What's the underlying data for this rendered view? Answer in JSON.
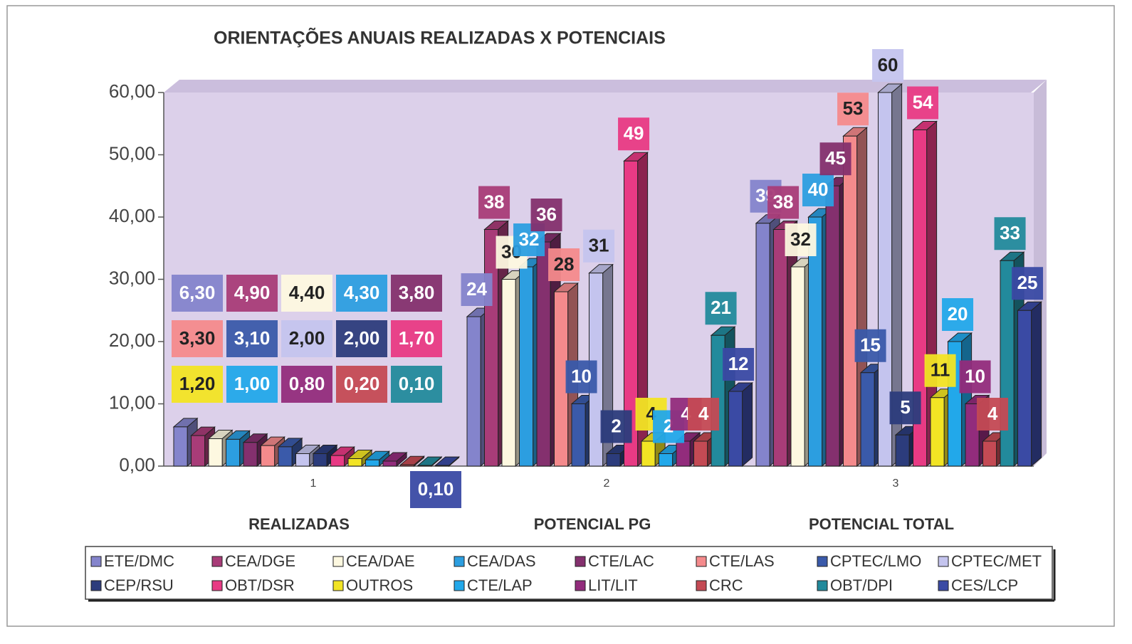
{
  "chart_data": {
    "type": "bar3d",
    "title": "ORIENTAÇÕES ANUAIS REALIZADAS X POTENCIAIS",
    "categories": [
      "1",
      "2",
      "3"
    ],
    "annotations": [
      "REALIZADAS",
      "POTENCIAL PG",
      "POTENCIAL TOTAL"
    ],
    "ylim": [
      0,
      60
    ],
    "yticks": [
      {
        "value": 0,
        "label": "0,00"
      },
      {
        "value": 10,
        "label": "10,00"
      },
      {
        "value": 20,
        "label": "20,00"
      },
      {
        "value": 30,
        "label": "30,00"
      },
      {
        "value": 40,
        "label": "40,00"
      },
      {
        "value": 50,
        "label": "50,00"
      },
      {
        "value": 60,
        "label": "60,00"
      }
    ],
    "series": [
      {
        "name": "ETE/DMC",
        "color": "#8484cc",
        "values": [
          6.3,
          24,
          39
        ],
        "value_labels": [
          "6,30",
          "24",
          "39"
        ]
      },
      {
        "name": "CEA/DGE",
        "color": "#a83c78",
        "values": [
          4.9,
          38,
          38
        ],
        "value_labels": [
          "4,90",
          "38",
          "38"
        ]
      },
      {
        "name": "CEA/DAE",
        "color": "#fdf8e0",
        "values": [
          4.4,
          30,
          32
        ],
        "value_labels": [
          "4,40",
          "30",
          "32"
        ]
      },
      {
        "name": "CEA/DAS",
        "color": "#2c9ee0",
        "values": [
          4.3,
          32,
          40
        ],
        "value_labels": [
          "4,30",
          "32",
          "40"
        ]
      },
      {
        "name": "CTE/LAC",
        "color": "#84306e",
        "values": [
          3.8,
          36,
          45
        ],
        "value_labels": [
          "3,80",
          "36",
          "45"
        ]
      },
      {
        "name": "CTE/LAS",
        "color": "#f48a8c",
        "values": [
          3.3,
          28,
          53
        ],
        "value_labels": [
          "3,30",
          "28",
          "53"
        ]
      },
      {
        "name": "CPTEC/LMO",
        "color": "#3a5aaa",
        "values": [
          3.1,
          10,
          15
        ],
        "value_labels": [
          "3,10",
          "10",
          "15"
        ]
      },
      {
        "name": "CPTEC/MET",
        "color": "#c4c4ee",
        "values": [
          2.0,
          31,
          60
        ],
        "value_labels": [
          "2,00",
          "31",
          "60"
        ]
      },
      {
        "name": "CEP/RSU",
        "color": "#2c3c7c",
        "values": [
          2.0,
          2,
          5
        ],
        "value_labels": [
          "2,00",
          "2",
          "5"
        ]
      },
      {
        "name": "OBT/DSR",
        "color": "#e83a84",
        "values": [
          1.7,
          49,
          54
        ],
        "value_labels": [
          "1,70",
          "49",
          "54"
        ]
      },
      {
        "name": "OUTROS",
        "color": "#f2e424",
        "values": [
          1.2,
          4,
          11
        ],
        "value_labels": [
          "1,20",
          "4",
          "11"
        ]
      },
      {
        "name": "CTE/LAP",
        "color": "#22a8ea",
        "values": [
          1.0,
          2,
          20
        ],
        "value_labels": [
          "1,00",
          "2",
          "20"
        ]
      },
      {
        "name": "LIT/LIT",
        "color": "#922c7c",
        "values": [
          0.8,
          4,
          10
        ],
        "value_labels": [
          "0,80",
          "4",
          "10"
        ]
      },
      {
        "name": "CRC",
        "color": "#c44a54",
        "values": [
          0.2,
          4,
          4
        ],
        "value_labels": [
          "0,20",
          "4",
          "4"
        ]
      },
      {
        "name": "OBT/DPI",
        "color": "#228a9c",
        "values": [
          0.1,
          21,
          33
        ],
        "value_labels": [
          "0,10",
          "21",
          "33"
        ]
      },
      {
        "name": "CES/LCP",
        "color": "#3a4aa4",
        "values": [
          0.1,
          12,
          25
        ],
        "value_labels": [
          "0,10",
          "12",
          "25"
        ]
      }
    ]
  }
}
